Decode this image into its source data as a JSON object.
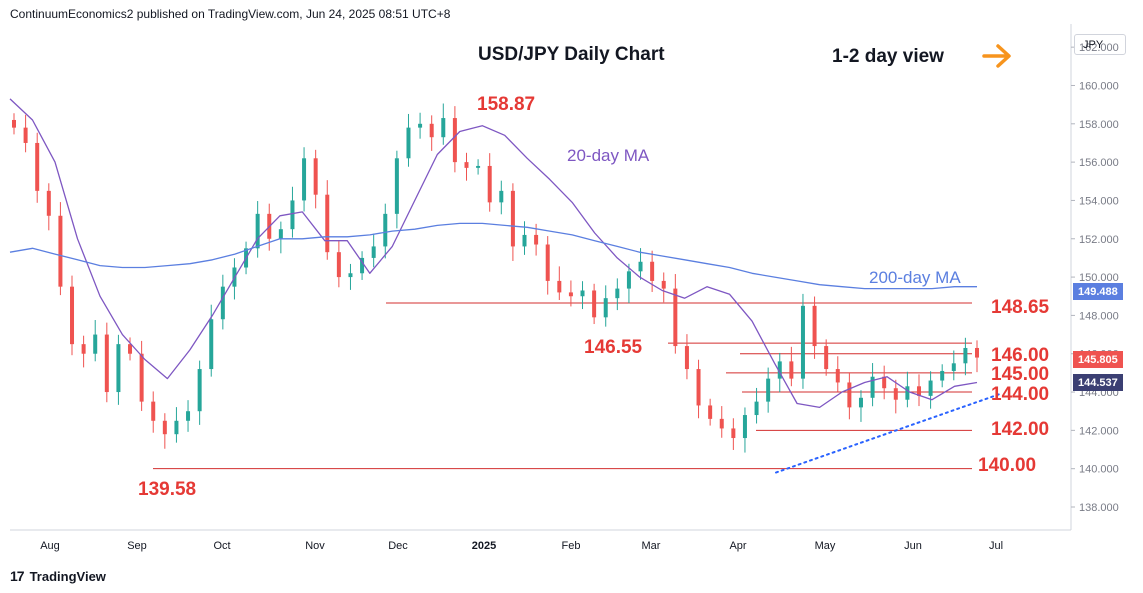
{
  "header": {
    "publisher_line": "ContinuumEconomics2 published on TradingView.com, Jun 24, 2025 08:51 UTC+8"
  },
  "main_title": "USD/JPY Daily Chart",
  "view_label": "1-2 day view",
  "currency_box": "JPY",
  "footer": {
    "brand": "TradingView"
  },
  "colors": {
    "bull": "#26a69a",
    "bear": "#ef5350",
    "ma20": "#7e57c2",
    "ma200": "#5b7fe0",
    "level": "#e53935",
    "arrow": "#f7941d",
    "trend": "#2962ff"
  },
  "chart_data": {
    "type": "candlestick",
    "title": "USD/JPY Daily Chart",
    "ylim": [
      136.8,
      163.0
    ],
    "y_ticks": [
      "162.000",
      "160.000",
      "158.000",
      "156.000",
      "154.000",
      "152.000",
      "150.000",
      "148.000",
      "146.000",
      "144.000",
      "142.000",
      "140.000",
      "138.000"
    ],
    "x_ticks": [
      {
        "label": "Aug",
        "bold": false
      },
      {
        "label": "Sep",
        "bold": false
      },
      {
        "label": "Oct",
        "bold": false
      },
      {
        "label": "Nov",
        "bold": false
      },
      {
        "label": "Dec",
        "bold": false
      },
      {
        "label": "2025",
        "bold": true
      },
      {
        "label": "Feb",
        "bold": false
      },
      {
        "label": "Mar",
        "bold": false
      },
      {
        "label": "Apr",
        "bold": false
      },
      {
        "label": "May",
        "bold": false
      },
      {
        "label": "Jun",
        "bold": false
      },
      {
        "label": "Jul",
        "bold": false
      }
    ],
    "last_price": "145.805",
    "ma200_last": "149.488",
    "ma20_last": "144.537",
    "series": [
      {
        "name": "20-day MA",
        "values": [
          159.3,
          158.2,
          156.0,
          152.0,
          149.0,
          147.0,
          145.7,
          144.7,
          146.2,
          148.0,
          150.0,
          152.0,
          153.2,
          153.4,
          151.9,
          151.9,
          150.2,
          151.6,
          154.0,
          156.4,
          157.6,
          157.9,
          157.4,
          156.2,
          155.1,
          153.9,
          152.3,
          151.0,
          150.0,
          149.3,
          148.9,
          149.5,
          149.1,
          147.7,
          145.5,
          143.4,
          143.2,
          144.0,
          144.5,
          144.8,
          144.0,
          143.6,
          144.3,
          144.5
        ]
      },
      {
        "name": "200-day MA",
        "values": [
          151.3,
          151.5,
          151.2,
          150.9,
          150.6,
          150.5,
          150.5,
          150.6,
          150.7,
          150.9,
          151.2,
          151.6,
          152.0,
          152.0,
          152.1,
          152.1,
          152.2,
          152.4,
          152.5,
          152.7,
          152.8,
          152.8,
          152.7,
          152.6,
          152.4,
          152.2,
          151.9,
          151.6,
          151.3,
          151.1,
          150.9,
          150.7,
          150.5,
          150.2,
          150.0,
          149.8,
          149.6,
          149.5,
          149.4,
          149.4,
          149.4,
          149.4,
          149.5,
          149.5
        ]
      }
    ],
    "key_levels": [
      {
        "label": "158.87",
        "value": 158.87
      },
      {
        "label": "148.65",
        "value": 148.65
      },
      {
        "label": "146.55",
        "value": 146.55
      },
      {
        "label": "146.00",
        "value": 146.0
      },
      {
        "label": "145.00",
        "value": 145.0
      },
      {
        "label": "144.00",
        "value": 144.0
      },
      {
        "label": "142.00",
        "value": 142.0
      },
      {
        "label": "140.00",
        "value": 140.0
      },
      {
        "label": "139.58",
        "value": 139.58
      }
    ],
    "annotations": [
      "20-day MA",
      "200-day MA",
      "158.87",
      "139.58"
    ],
    "trendline": {
      "from": 139.8,
      "to": 143.9
    },
    "closes": [
      157.8,
      157.0,
      154.5,
      153.2,
      149.5,
      146.5,
      146.0,
      147.0,
      144.0,
      146.5,
      146.0,
      143.5,
      142.5,
      141.8,
      142.5,
      143.0,
      145.2,
      147.8,
      149.5,
      150.5,
      151.5,
      153.3,
      152.0,
      152.5,
      154.0,
      156.2,
      154.3,
      151.3,
      150.0,
      150.2,
      151.0,
      151.6,
      153.3,
      156.2,
      157.8,
      158.0,
      157.3,
      158.3,
      156.0,
      155.7,
      155.8,
      153.9,
      154.5,
      151.6,
      152.2,
      151.7,
      149.8,
      149.2,
      149.0,
      149.3,
      147.9,
      148.9,
      149.4,
      150.3,
      150.8,
      149.8,
      149.4,
      146.4,
      145.2,
      143.3,
      142.6,
      142.1,
      141.6,
      142.8,
      143.5,
      144.7,
      145.6,
      144.7,
      148.5,
      146.4,
      145.2,
      144.5,
      143.2,
      143.7,
      144.8,
      144.2,
      143.6,
      144.3,
      143.8,
      144.6,
      145.1,
      145.5,
      146.3,
      145.8
    ]
  }
}
